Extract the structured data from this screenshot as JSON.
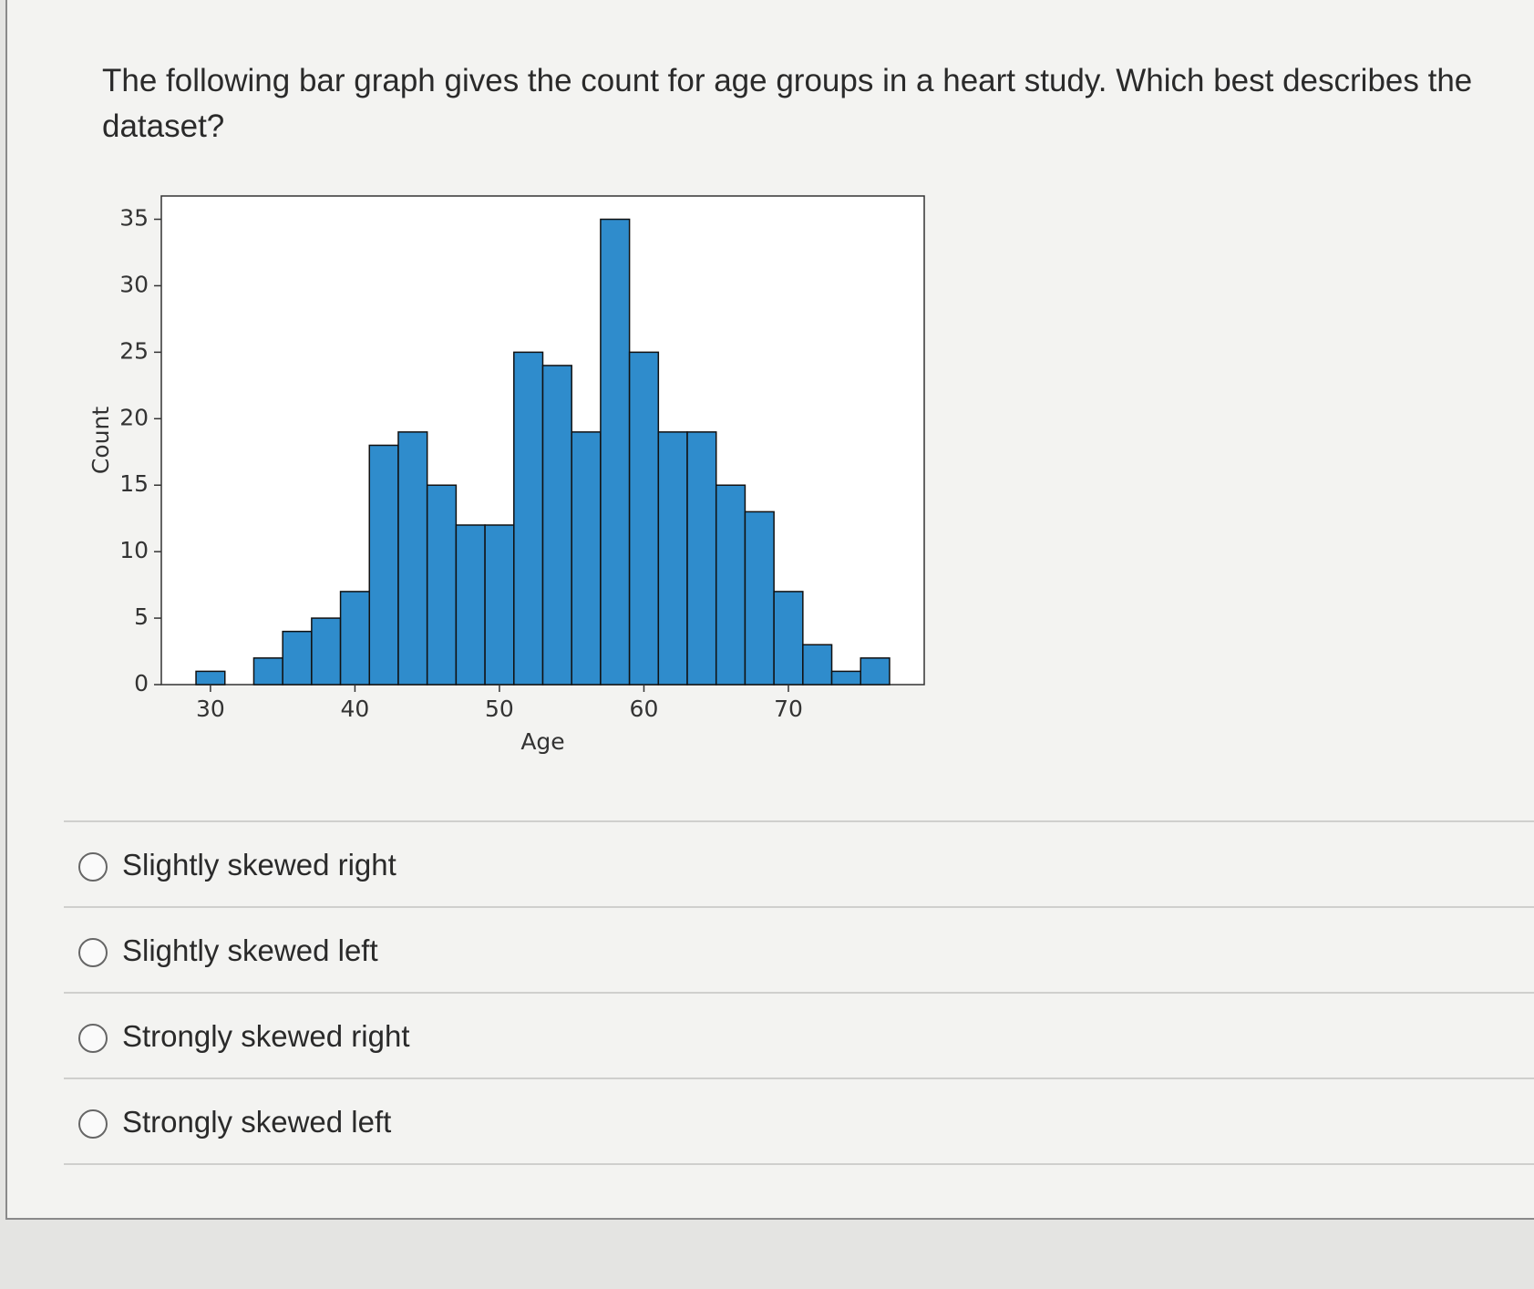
{
  "question": "The following bar graph gives the count for age groups in a heart study. Which best describes the dataset?",
  "chart_data": {
    "type": "histogram",
    "bins": [
      29,
      31,
      33,
      35,
      37,
      39,
      41,
      43,
      45,
      47,
      49,
      51,
      53,
      55,
      57,
      59,
      61,
      63,
      65,
      67,
      69,
      71,
      73,
      75,
      77
    ],
    "values": [
      1,
      0,
      2,
      4,
      5,
      7,
      18,
      19,
      15,
      12,
      12,
      25,
      24,
      19,
      35,
      25,
      19,
      19,
      15,
      13,
      7,
      3,
      1,
      2
    ],
    "color": "#2f8ccc",
    "edgecolor": "#111111",
    "xlim": [
      26.6,
      79.4
    ],
    "ylim": [
      0,
      36.75
    ],
    "xticks": [
      30,
      40,
      50,
      60,
      70
    ],
    "yticks": [
      0,
      5,
      10,
      15,
      20,
      25,
      30,
      35
    ],
    "xlabel": "Age",
    "ylabel": "Count"
  },
  "options": [
    "Slightly skewed right",
    "Slightly skewed left",
    "Strongly skewed right",
    "Strongly skewed left"
  ]
}
